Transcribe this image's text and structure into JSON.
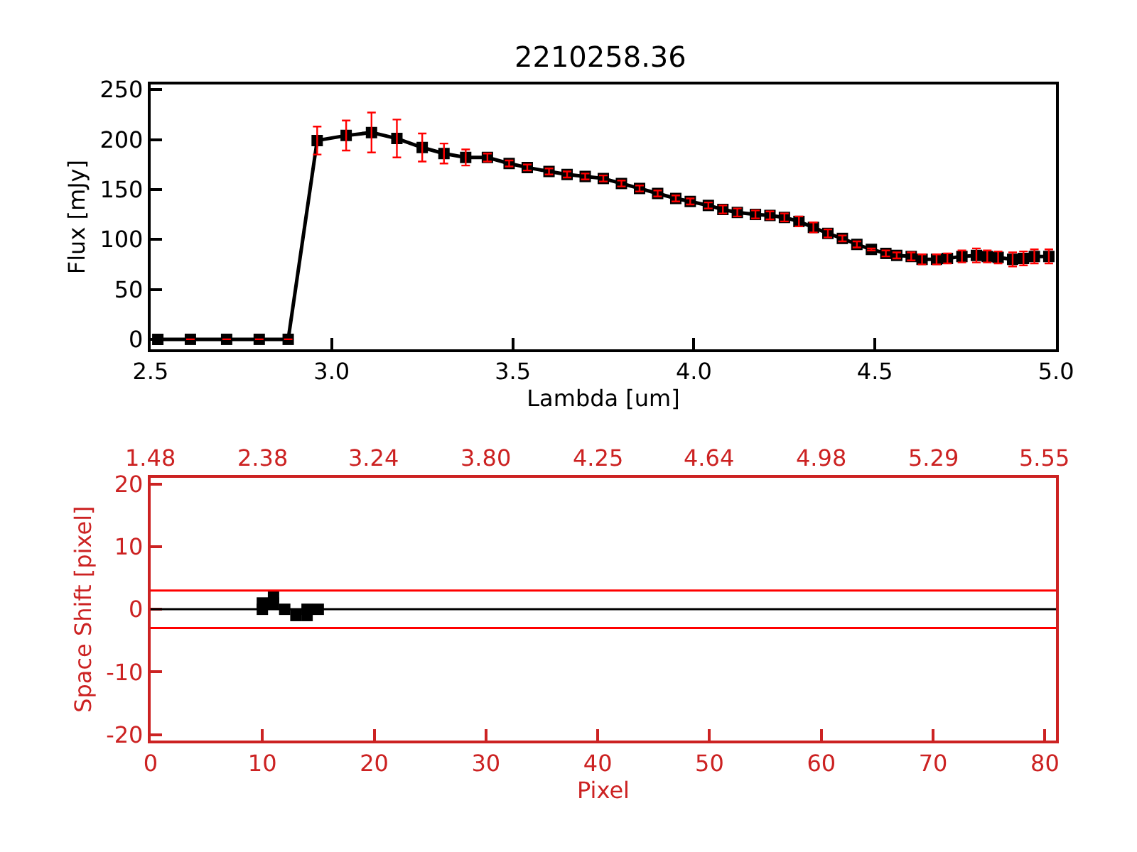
{
  "chart_data": [
    {
      "type": "line",
      "title": "2210258.36",
      "xlabel": "Lambda [um]",
      "ylabel": "Flux [mJy]",
      "xlim": [
        2.5,
        5.0
      ],
      "xticks": [
        2.5,
        {
          "value": 3,
          "label": "3.0"
        },
        3.5,
        {
          "value": 4,
          "label": "4.0"
        },
        4.5,
        {
          "value": 5,
          "label": "5.0"
        }
      ],
      "ylim": [
        -10,
        255
      ],
      "yticks": [
        0,
        50,
        100,
        150,
        200,
        250
      ],
      "marker": "square",
      "line_style": "solid",
      "series": [
        {
          "color": "#000000",
          "x": [
            2.52,
            2.61,
            2.71,
            2.8,
            2.88,
            2.96,
            3.04,
            3.11,
            3.18,
            3.25,
            3.31,
            3.37,
            3.43,
            3.49,
            3.54,
            3.6,
            3.65,
            3.7,
            3.75,
            3.8,
            3.85,
            3.9,
            3.95,
            3.99,
            4.04,
            4.08,
            4.12,
            4.17,
            4.21,
            4.25,
            4.29,
            4.33,
            4.37,
            4.41,
            4.45,
            4.49,
            4.53,
            4.56,
            4.6,
            4.63,
            4.67,
            4.7,
            4.74,
            4.78,
            4.81,
            4.84,
            4.88,
            4.91,
            4.94,
            4.98
          ],
          "values": [
            0,
            0,
            0,
            0,
            0,
            199,
            204,
            207,
            201,
            192,
            186,
            182,
            182,
            176,
            172,
            168,
            165,
            163,
            161,
            156,
            151,
            146,
            141,
            138,
            134,
            130,
            127,
            125,
            124,
            122,
            118,
            112,
            106,
            101,
            95,
            90,
            86,
            84,
            83,
            80,
            80,
            81,
            83,
            84,
            83,
            82,
            80,
            81,
            83,
            83
          ],
          "errors": [
            null,
            null,
            null,
            null,
            null,
            14,
            15,
            20,
            19,
            14,
            10,
            8,
            4,
            3,
            3,
            3,
            3,
            3,
            3,
            3,
            3,
            3,
            3,
            3,
            3,
            4,
            4,
            4,
            4,
            4,
            5,
            5,
            4,
            3,
            3,
            1,
            3,
            3,
            4,
            5,
            5,
            5,
            6,
            7,
            6,
            6,
            7,
            7,
            7,
            7
          ]
        }
      ]
    },
    {
      "type": "scatter",
      "xlabel": "Pixel",
      "ylabel": "Space Shift [pixel]",
      "xlim": [
        0,
        81
      ],
      "xticks": [
        0,
        10,
        20,
        30,
        40,
        50,
        60,
        70,
        80
      ],
      "annotations": [
        "1.48",
        "2.38",
        "3.24",
        "3.80",
        "4.25",
        "4.64",
        "4.98",
        "5.29",
        "5.55"
      ],
      "ylim": [
        -21,
        21
      ],
      "yticks": [
        -20,
        -10,
        0,
        10,
        20
      ],
      "marker": "square",
      "series": [
        {
          "color": "#000000",
          "x": [
            10,
            10,
            11,
            11,
            12,
            13,
            14,
            14,
            15
          ],
          "values": [
            0,
            1,
            1,
            2,
            0,
            -1,
            -1,
            0,
            0
          ]
        }
      ],
      "ref_lines": [
        {
          "axis": "y",
          "value": 3,
          "color": "#ff0000"
        },
        {
          "axis": "y",
          "value": 0,
          "color": "#000000"
        },
        {
          "axis": "y",
          "value": -3,
          "color": "#ff0000"
        }
      ]
    }
  ]
}
